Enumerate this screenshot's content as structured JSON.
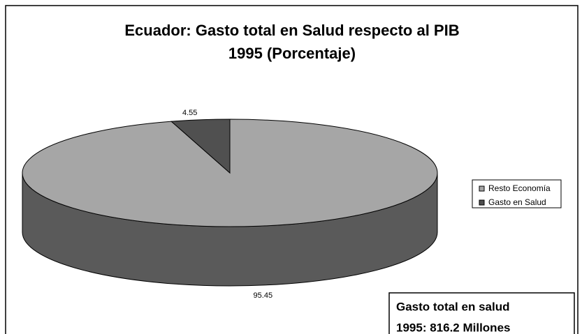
{
  "chart_data": {
    "type": "pie",
    "title": "Ecuador: Gasto total en Salud respecto al PIB",
    "subtitle": "1995 (Porcentaje)",
    "categories": [
      "Resto Economía",
      "Gasto en Salud"
    ],
    "values": [
      95.45,
      4.55
    ],
    "colors": [
      "#a6a6a6",
      "#505050"
    ],
    "legend": "right",
    "annotation": [
      "Gasto total en salud",
      "1995: 816.2 Millones"
    ]
  }
}
